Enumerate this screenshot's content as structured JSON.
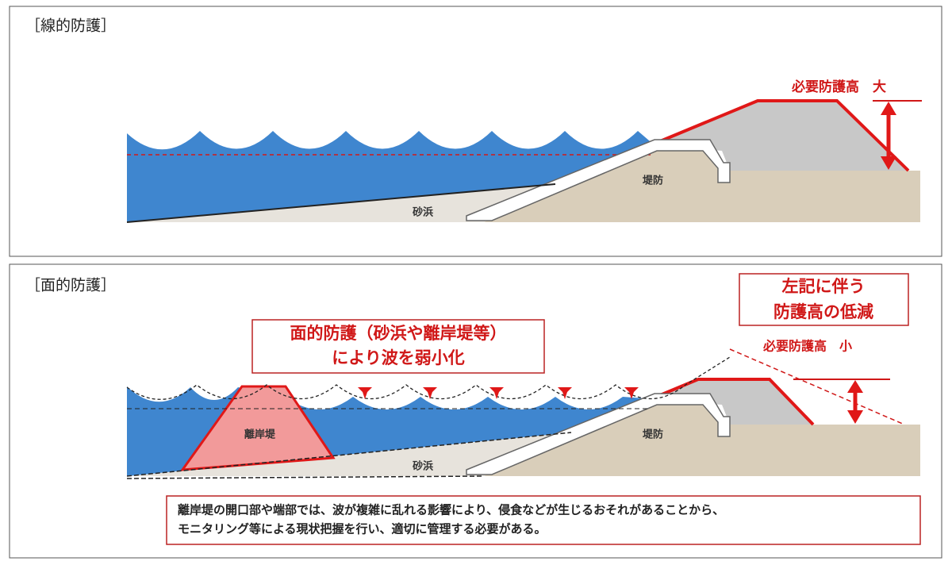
{
  "panels": [
    {
      "title": "［線的防護］",
      "height_label": "必要防護高　大",
      "dike": "堤防",
      "beach": "砂浜"
    },
    {
      "title": "［面的防護］",
      "callout": [
        "面的防護（砂浜や離岸堤等）",
        "により波を弱小化"
      ],
      "callout2": [
        "左記に伴う",
        "防護高の低減"
      ],
      "height_label": "必要防護高　小",
      "breakwater": "離岸堤",
      "dike": "堤防",
      "beach": "砂浜",
      "note": [
        "離岸堤の開口部や端部では、波が複雑に乱れる影響により、侵食などが生じるおそれがあることから、",
        "モニタリング等による現状把握を行い、適切に管理する必要がある。"
      ]
    }
  ]
}
